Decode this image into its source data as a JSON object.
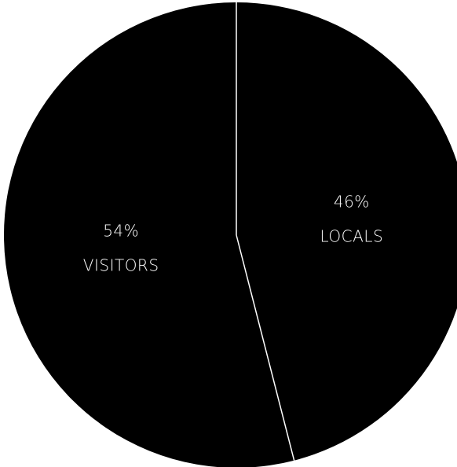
{
  "chart_data": {
    "type": "pie",
    "title": "",
    "slices": [
      {
        "name": "LOCALS",
        "value": 46,
        "value_label": "46%",
        "color": "#000000"
      },
      {
        "name": "VISITORS",
        "value": 54,
        "value_label": "54%",
        "color": "#000000"
      }
    ],
    "start_angle_deg": 0,
    "direction": "clockwise",
    "separator_color": "#ffffff",
    "label_color": "#ffffff",
    "legend": "none"
  }
}
